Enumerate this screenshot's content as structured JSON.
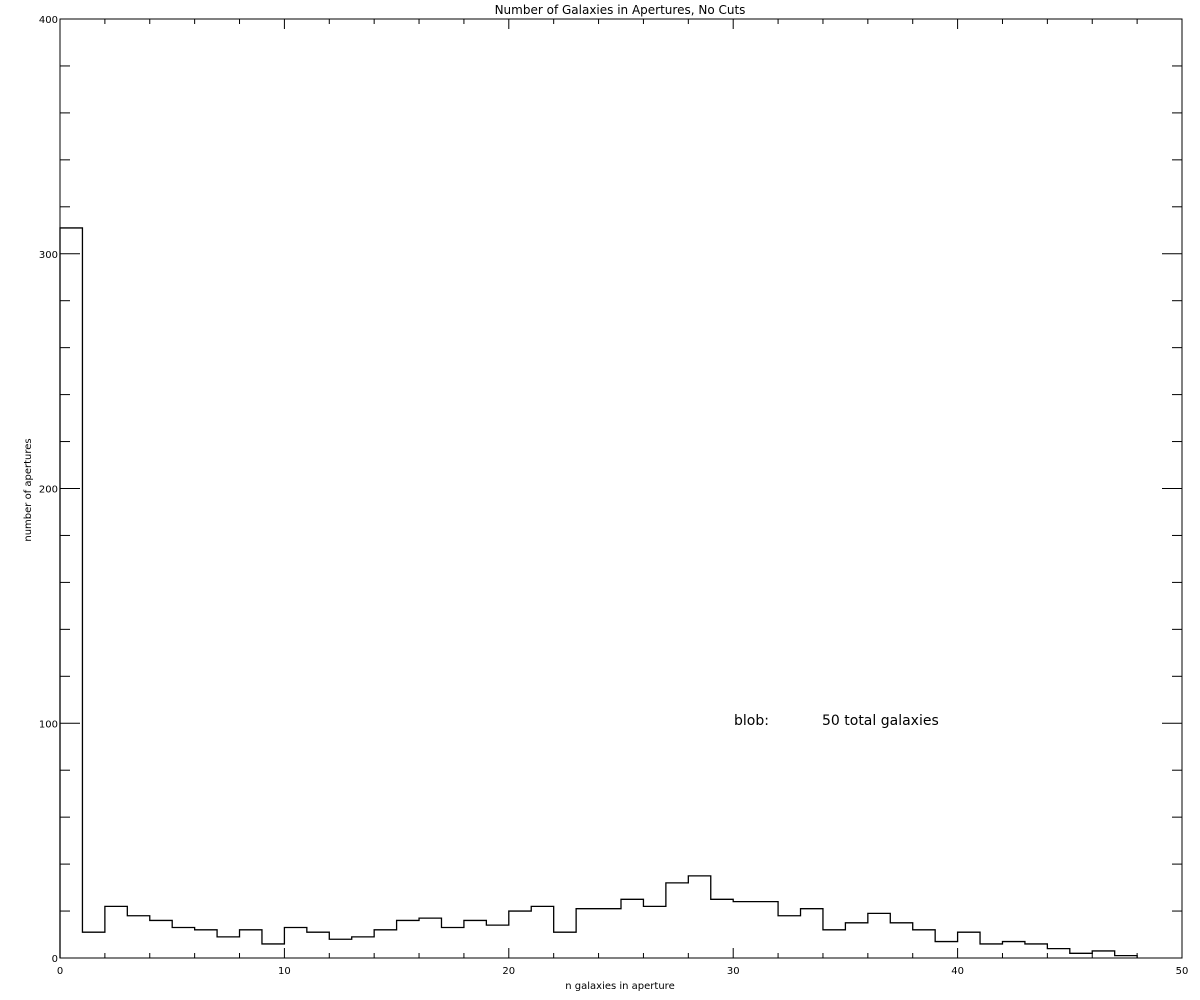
{
  "chart_data": {
    "type": "histogram",
    "title": "Number of Galaxies in Apertures, No Cuts",
    "xlabel": "n galaxies in aperture",
    "ylabel": "number of apertures",
    "xlim": [
      0,
      50
    ],
    "ylim": [
      0,
      400
    ],
    "x_ticks": [
      0,
      10,
      20,
      30,
      40,
      50
    ],
    "y_ticks": [
      0,
      100,
      200,
      300,
      400
    ],
    "bin_width": 1,
    "bin_edges": [
      0,
      1,
      2,
      3,
      4,
      5,
      6,
      7,
      8,
      9,
      10,
      11,
      12,
      13,
      14,
      15,
      16,
      17,
      18,
      19,
      20,
      21,
      22,
      23,
      24,
      25,
      26,
      27,
      28,
      29,
      30,
      31,
      32,
      33,
      34,
      35,
      36,
      37,
      38,
      39,
      40,
      41,
      42,
      43,
      44,
      45,
      46,
      47,
      48
    ],
    "counts": [
      311,
      11,
      22,
      18,
      16,
      13,
      12,
      9,
      12,
      6,
      13,
      11,
      8,
      9,
      12,
      16,
      17,
      13,
      16,
      14,
      20,
      22,
      11,
      21,
      21,
      25,
      22,
      32,
      35,
      25,
      24,
      24,
      18,
      21,
      12,
      15,
      19,
      15,
      12,
      7,
      11,
      6,
      7,
      6,
      4,
      2,
      3,
      1
    ],
    "grid": false,
    "annotation": {
      "label": "blob:",
      "value": "50 total galaxies"
    }
  }
}
